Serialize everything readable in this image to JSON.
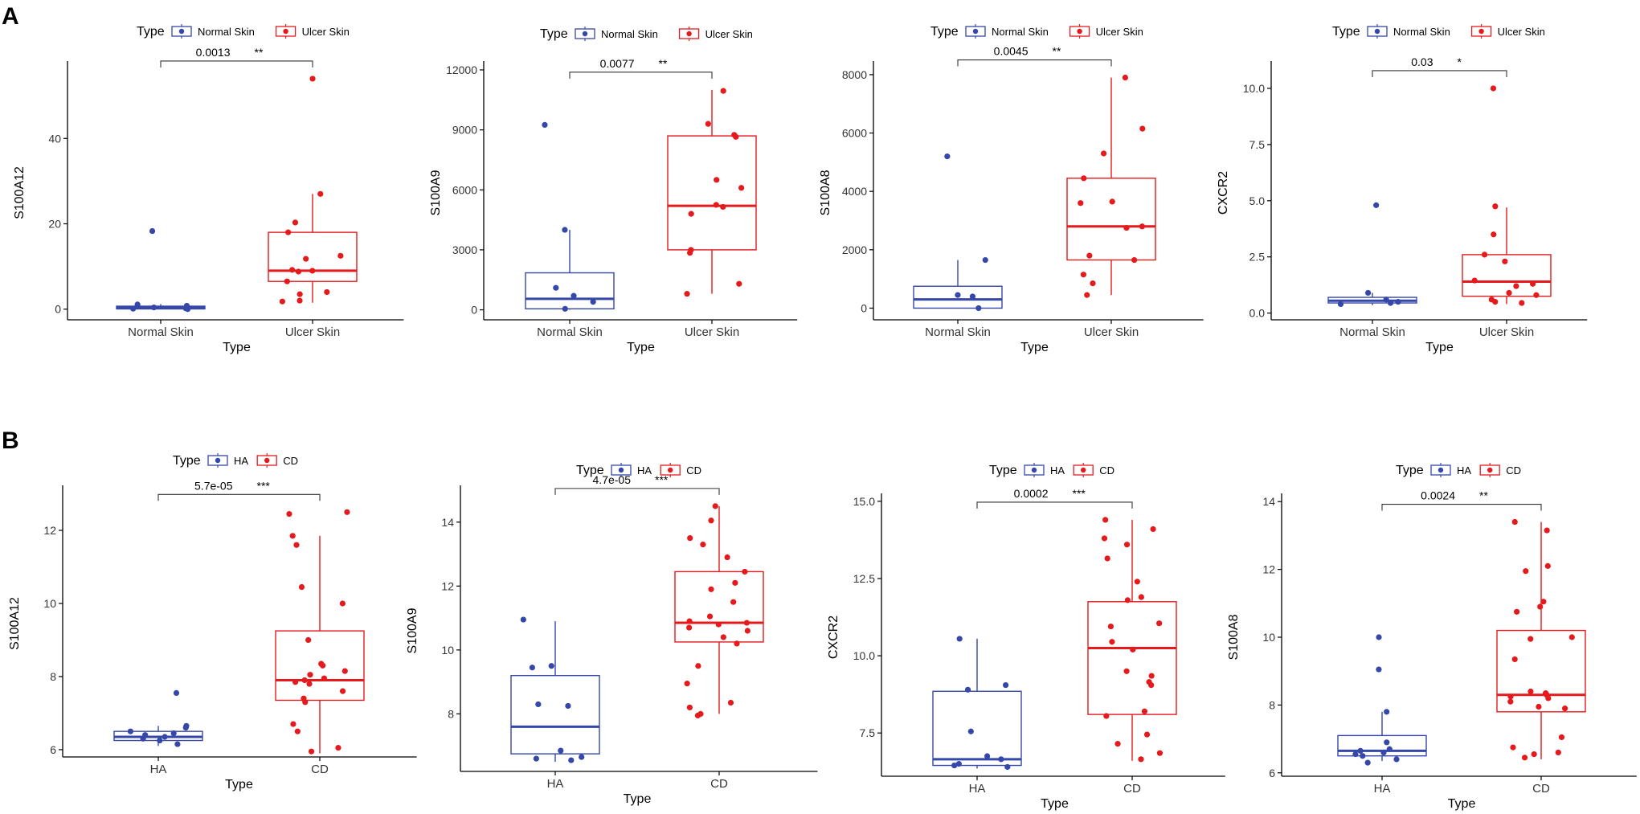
{
  "panel_labels": [
    "A",
    "B"
  ],
  "colors": {
    "group1": "#3547a8",
    "group2": "#e41a1c",
    "axis": "#000000"
  },
  "chart_data": [
    {
      "type": "box",
      "row": "A",
      "legend_title": "Type",
      "categories": [
        "Normal Skin",
        "Ulcer Skin"
      ],
      "xlabel": "Type",
      "ylabel": "S100A12",
      "ylim": [
        -2.5,
        57
      ],
      "yticks": [
        0,
        20,
        40
      ],
      "tick_labels": [
        "0",
        "20",
        "40"
      ],
      "boxes": [
        {
          "q1": 0.05,
          "median": 0.35,
          "q3": 0.7,
          "whisker_low": 0.0,
          "whisker_high": 1.2
        },
        {
          "q1": 6.5,
          "median": 9,
          "q3": 18,
          "whisker_low": 1.5,
          "whisker_high": 27
        }
      ],
      "points": [
        [
          0.2,
          0.0,
          0.1,
          0.4,
          0.8,
          1.1,
          18.3
        ],
        [
          54,
          27,
          20.3,
          18,
          12.5,
          11.8,
          9.2,
          9.0,
          8.8,
          6.5,
          4,
          3.5,
          2,
          1.8
        ]
      ],
      "p_value": "0.0013",
      "significance": "**"
    },
    {
      "type": "box",
      "row": "A",
      "legend_title": "Type",
      "categories": [
        "Normal Skin",
        "Ulcer Skin"
      ],
      "xlabel": "Type",
      "ylabel": "S100A9",
      "ylim": [
        -500,
        12200
      ],
      "yticks": [
        0,
        3000,
        6000,
        9000,
        12000
      ],
      "tick_labels": [
        "0",
        "3000",
        "6000",
        "9000",
        "12000"
      ],
      "boxes": [
        {
          "q1": 50,
          "median": 550,
          "q3": 1850,
          "whisker_low": 0,
          "whisker_high": 4000
        },
        {
          "q1": 3000,
          "median": 5200,
          "q3": 8700,
          "whisker_low": 800,
          "whisker_high": 11000
        }
      ],
      "points": [
        [
          9250,
          4000,
          1100,
          700,
          400,
          50
        ],
        [
          10950,
          9300,
          8750,
          8650,
          6500,
          6100,
          5250,
          5150,
          4800,
          3000,
          2850,
          1300,
          800
        ]
      ],
      "p_value": "0.0077",
      "significance": "**"
    },
    {
      "type": "box",
      "row": "A",
      "legend_title": "Type",
      "categories": [
        "Normal Skin",
        "Ulcer Skin"
      ],
      "xlabel": "Type",
      "ylabel": "S100A8",
      "ylim": [
        -400,
        8300
      ],
      "yticks": [
        0,
        2000,
        4000,
        6000,
        8000
      ],
      "tick_labels": [
        "0",
        "2000",
        "4000",
        "6000",
        "8000"
      ],
      "boxes": [
        {
          "q1": 0,
          "median": 300,
          "q3": 750,
          "whisker_low": 0,
          "whisker_high": 1650
        },
        {
          "q1": 1650,
          "median": 2800,
          "q3": 4450,
          "whisker_low": 450,
          "whisker_high": 7900
        }
      ],
      "points": [
        [
          5200,
          1650,
          450,
          400,
          0
        ],
        [
          7900,
          6150,
          5300,
          4450,
          3650,
          3600,
          2800,
          2750,
          1800,
          1650,
          1150,
          850,
          450
        ]
      ],
      "p_value": "0.0045",
      "significance": "**"
    },
    {
      "type": "box",
      "row": "A",
      "legend_title": "Type",
      "categories": [
        "Normal Skin",
        "Ulcer Skin"
      ],
      "xlabel": "Type",
      "ylabel": "CXCR2",
      "ylim": [
        -0.3,
        11.0
      ],
      "yticks": [
        0.0,
        2.5,
        5.0,
        7.5,
        10.0
      ],
      "tick_labels": [
        "0.0",
        "2.5",
        "5.0",
        "7.5",
        "10.0"
      ],
      "boxes": [
        {
          "q1": 0.45,
          "median": 0.55,
          "q3": 0.7,
          "whisker_low": 0.35,
          "whisker_high": 0.9
        },
        {
          "q1": 0.75,
          "median": 1.4,
          "q3": 2.6,
          "whisker_low": 0.4,
          "whisker_high": 4.7
        }
      ],
      "points": [
        [
          4.8,
          0.9,
          0.6,
          0.5,
          0.45,
          0.4
        ],
        [
          10,
          4.75,
          3.5,
          2.6,
          2.3,
          1.45,
          1.3,
          1.2,
          0.9,
          0.8,
          0.6,
          0.5,
          0.45
        ]
      ],
      "p_value": "0.03",
      "significance": "*"
    },
    {
      "type": "box",
      "row": "B",
      "legend_title": "Type",
      "categories": [
        "HA",
        "CD"
      ],
      "xlabel": "Type",
      "ylabel": "S100A12",
      "ylim": [
        5.8,
        13.1
      ],
      "yticks": [
        6,
        8,
        10,
        12
      ],
      "tick_labels": [
        "6",
        "8",
        "10",
        "12"
      ],
      "boxes": [
        {
          "q1": 6.25,
          "median": 6.35,
          "q3": 6.5,
          "whisker_low": 6.1,
          "whisker_high": 6.65
        },
        {
          "q1": 7.35,
          "median": 7.9,
          "q3": 9.25,
          "whisker_low": 5.9,
          "whisker_high": 11.85
        }
      ],
      "points": [
        [
          7.55,
          6.65,
          6.6,
          6.5,
          6.45,
          6.4,
          6.35,
          6.3,
          6.25,
          6.15
        ],
        [
          12.5,
          12.45,
          11.85,
          11.6,
          10.45,
          10.0,
          9.0,
          8.35,
          8.3,
          8.15,
          8.05,
          7.95,
          7.9,
          7.85,
          7.8,
          7.6,
          7.4,
          7.3,
          6.7,
          6.5,
          6.05,
          5.95
        ]
      ],
      "p_value": "5.7e-05",
      "significance": "***"
    },
    {
      "type": "box",
      "row": "B",
      "legend_title": "Type",
      "categories": [
        "HA",
        "CD"
      ],
      "xlabel": "Type",
      "ylabel": "S100A9",
      "ylim": [
        6.2,
        15.0
      ],
      "yticks": [
        8,
        10,
        12,
        14
      ],
      "tick_labels": [
        "8",
        "10",
        "12",
        "14"
      ],
      "boxes": [
        {
          "q1": 6.75,
          "median": 7.6,
          "q3": 9.2,
          "whisker_low": 6.5,
          "whisker_high": 10.9
        },
        {
          "q1": 10.25,
          "median": 10.85,
          "q3": 12.45,
          "whisker_low": 8.0,
          "whisker_high": 14.5
        }
      ],
      "points": [
        [
          10.95,
          9.5,
          9.45,
          8.3,
          8.25,
          6.85,
          6.65,
          6.6,
          6.55
        ],
        [
          14.5,
          14.05,
          13.5,
          13.3,
          12.9,
          12.45,
          12.1,
          11.9,
          11.5,
          11.05,
          10.9,
          10.85,
          10.8,
          10.7,
          10.6,
          10.4,
          10.2,
          9.5,
          8.95,
          8.35,
          8.2,
          8.0,
          7.95
        ]
      ],
      "p_value": "4.7e-05",
      "significance": "***"
    },
    {
      "type": "box",
      "row": "B",
      "legend_title": "Type",
      "categories": [
        "HA",
        "CD"
      ],
      "xlabel": "Type",
      "ylabel": "CXCR2",
      "ylim": [
        6.1,
        15.1
      ],
      "yticks": [
        7.5,
        10.0,
        12.5,
        15.0
      ],
      "tick_labels": [
        "7.5",
        "10.0",
        "12.5",
        "15.0"
      ],
      "boxes": [
        {
          "q1": 6.45,
          "median": 6.65,
          "q3": 8.85,
          "whisker_low": 6.35,
          "whisker_high": 10.55
        },
        {
          "q1": 8.1,
          "median": 10.25,
          "q3": 11.75,
          "whisker_low": 6.6,
          "whisker_high": 14.4
        }
      ],
      "points": [
        [
          10.55,
          9.05,
          8.9,
          7.55,
          6.75,
          6.65,
          6.5,
          6.45,
          6.4
        ],
        [
          14.4,
          14.1,
          13.8,
          13.6,
          13.15,
          12.4,
          11.9,
          11.8,
          11.05,
          10.95,
          10.45,
          10.2,
          9.5,
          9.35,
          9.15,
          9.05,
          8.2,
          8.05,
          7.45,
          7.15,
          6.85,
          6.65
        ]
      ],
      "p_value": "0.0002",
      "significance": "***"
    },
    {
      "type": "box",
      "row": "B",
      "legend_title": "Type",
      "categories": [
        "HA",
        "CD"
      ],
      "xlabel": "Type",
      "ylabel": "S100A8",
      "ylim": [
        5.9,
        14.1
      ],
      "yticks": [
        6,
        8,
        10,
        12,
        14
      ],
      "tick_labels": [
        "6",
        "8",
        "10",
        "12",
        "14"
      ],
      "boxes": [
        {
          "q1": 6.5,
          "median": 6.65,
          "q3": 7.1,
          "whisker_low": 6.35,
          "whisker_high": 7.8
        },
        {
          "q1": 7.8,
          "median": 8.3,
          "q3": 10.2,
          "whisker_low": 6.4,
          "whisker_high": 13.4
        }
      ],
      "points": [
        [
          10.0,
          9.05,
          7.8,
          6.9,
          6.7,
          6.65,
          6.6,
          6.55,
          6.5,
          6.4,
          6.3
        ],
        [
          13.4,
          13.15,
          12.1,
          11.95,
          11.05,
          10.9,
          10.75,
          10.0,
          9.95,
          9.35,
          8.4,
          8.35,
          8.3,
          8.25,
          8.2,
          8.1,
          7.95,
          7.9,
          7.05,
          6.75,
          6.6,
          6.55,
          6.45
        ]
      ],
      "p_value": "0.0024",
      "significance": "**"
    }
  ]
}
